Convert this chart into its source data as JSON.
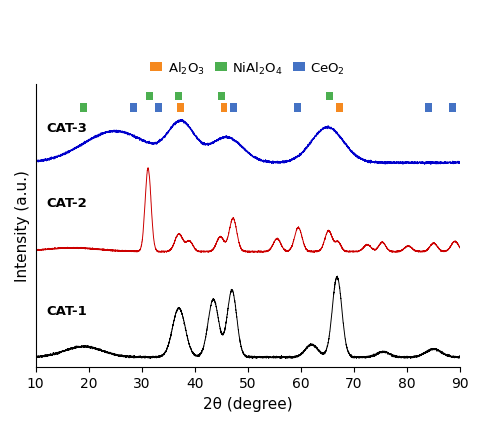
{
  "xlabel": "2θ (degree)",
  "ylabel": "Intensity (a.u.)",
  "xlim": [
    10,
    90
  ],
  "x_ticks": [
    10,
    20,
    30,
    40,
    50,
    60,
    70,
    80,
    90
  ],
  "colors": {
    "CAT1": "#000000",
    "CAT2": "#cc0000",
    "CAT3": "#0000cc"
  },
  "marker_colors": {
    "Al2O3": "#f5891f",
    "NiAl2O4": "#4caf50",
    "CeO2": "#4472c4"
  },
  "marker_positions": {
    "NiAl2O4_high": [
      31.5,
      37.0,
      45.0,
      65.3
    ],
    "NiAl2O4_low": [
      19.0
    ],
    "Al2O3_low": [
      37.3,
      45.5,
      67.2
    ],
    "CeO2_low": [
      28.5,
      33.2,
      47.3,
      59.3,
      84.0,
      88.5
    ]
  },
  "noise_seed": 42
}
